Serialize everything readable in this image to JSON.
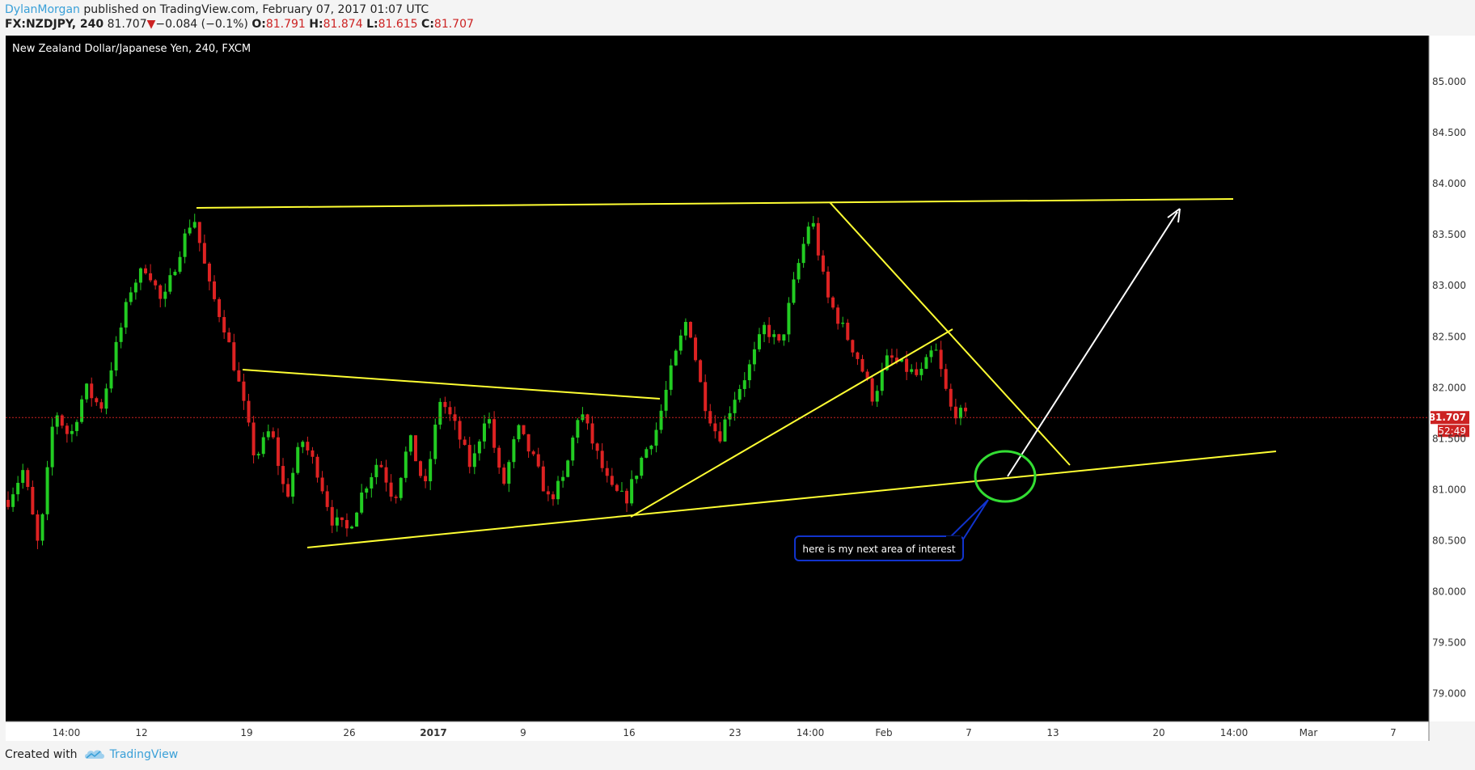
{
  "header": {
    "author": "DylanMorgan",
    "published_text": "published on TradingView.com, February 07, 2017 01:07 UTC",
    "symbol": "FX:NZDJPY, 240",
    "last": "81.707",
    "change": "−0.084 (−0.1%)",
    "o_label": "O:",
    "o_value": "81.791",
    "h_label": "H:",
    "h_value": "81.874",
    "l_label": "L:",
    "l_value": "81.615",
    "c_label": "C:",
    "c_value": "81.707"
  },
  "footer": {
    "created_with": "Created with",
    "brand": "TradingView"
  },
  "colors": {
    "up": "#22cc22",
    "down": "#dd2222",
    "trendline": "#ffff33",
    "arrow": "#ffffff",
    "circle": "#33dd33",
    "callout_border": "#1133cc",
    "price_line": "#cc2222"
  },
  "chart_data": {
    "type": "candlestick",
    "title": "New Zealand Dollar/Japanese Yen, 240, FXCM",
    "ylim": [
      78.7,
      85.4
    ],
    "price_ticks": [
      "85.000",
      "84.500",
      "84.000",
      "83.500",
      "83.000",
      "82.500",
      "82.000",
      "81.500",
      "81.000",
      "80.500",
      "80.000",
      "79.500",
      "79.000"
    ],
    "x_ticks": [
      "14:00",
      "12",
      "19",
      "26",
      "2017",
      "9",
      "16",
      "23",
      "14:00",
      "Feb",
      "7",
      "13",
      "20",
      "14:00",
      "Mar",
      "7"
    ],
    "current_price": "81.707",
    "countdown": "52:49",
    "price_path": [
      80.9,
      81.2,
      80.4,
      81.8,
      81.5,
      82.0,
      81.8,
      82.4,
      83.0,
      83.2,
      82.8,
      83.3,
      83.7,
      83.0,
      82.6,
      82.0,
      81.3,
      81.6,
      80.9,
      81.5,
      81.2,
      80.7,
      80.6,
      81.0,
      81.3,
      80.9,
      81.5,
      81.0,
      81.9,
      81.6,
      81.2,
      81.8,
      81.0,
      81.6,
      81.3,
      80.9,
      81.1,
      81.8,
      81.4,
      81.0,
      80.9,
      81.3,
      81.6,
      82.2,
      82.7,
      81.9,
      81.5,
      81.9,
      82.2,
      82.6,
      82.4,
      83.1,
      83.7,
      82.9,
      82.6,
      82.3,
      81.9,
      82.3,
      82.2,
      82.1,
      82.4,
      81.8,
      81.707
    ],
    "annotations": {
      "callout_text": "here is my next area of interest",
      "trendlines": [
        {
          "name": "top-resistance",
          "from": [
            "~16 Dec",
            83.77
          ],
          "to": [
            "14:00 (late Feb)",
            83.85
          ]
        },
        {
          "name": "upper-wedge",
          "from": [
            "~19 Dec",
            82.18
          ],
          "to": [
            "~18 Jan",
            81.9
          ]
        },
        {
          "name": "long-support",
          "from": [
            "~23 Dec",
            80.45
          ],
          "to": [
            "~Mar",
            81.35
          ]
        },
        {
          "name": "rising-support",
          "from": [
            "16 Jan",
            80.75
          ],
          "to": [
            "~5 Feb",
            82.55
          ]
        },
        {
          "name": "descending-resistance",
          "from": [
            "~27 Jan",
            83.8
          ],
          "to": [
            "~14 Feb",
            81.25
          ]
        }
      ]
    }
  }
}
